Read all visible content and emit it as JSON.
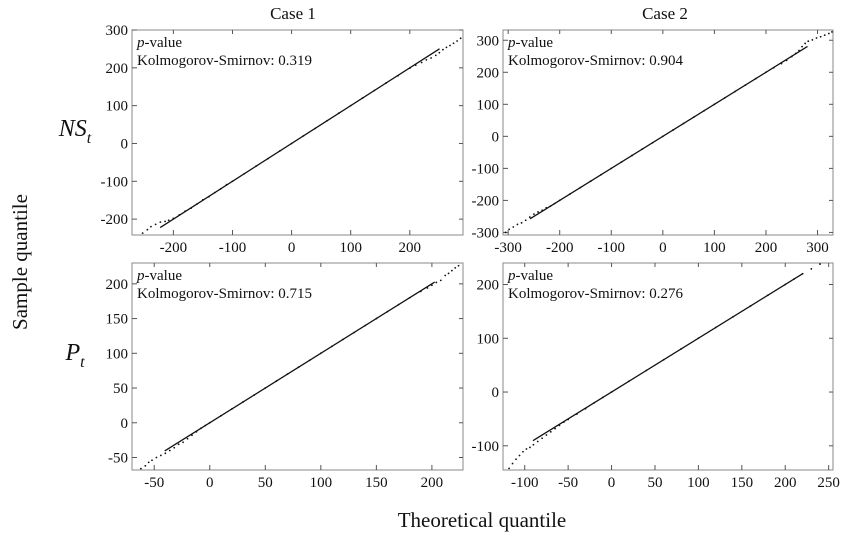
{
  "figure": {
    "column_titles": [
      "Case 1",
      "Case 2"
    ],
    "row_labels": [
      {
        "main": "NS",
        "sub": "t"
      },
      {
        "main": "P",
        "sub": "t"
      }
    ],
    "y_label": "Sample quantile",
    "x_label": "Theoretical quantile"
  },
  "chart_data": [
    {
      "type": "scatter",
      "panel": "NS_t, Case 1",
      "xlim": [
        -270,
        290
      ],
      "ylim": [
        -242,
        300
      ],
      "xticks": [
        -200,
        -100,
        0,
        100,
        200
      ],
      "yticks": [
        -200,
        -100,
        0,
        100,
        200,
        300
      ],
      "grid": false,
      "annotation": {
        "line1_italic": "p",
        "line1_rest": "-value",
        "test": "Kolmogorov-Smirnov:",
        "p_value": "0.319"
      },
      "points": [
        [
          -264,
          -252
        ],
        [
          -252,
          -237
        ],
        [
          -244,
          -228
        ],
        [
          -238,
          -220
        ],
        [
          -230,
          -214
        ],
        [
          -222,
          -208
        ],
        [
          -214,
          -206
        ],
        [
          -208,
          -203
        ],
        [
          -200,
          -198
        ],
        [
          -190,
          -189
        ],
        [
          -180,
          -179
        ],
        [
          -170,
          -171
        ],
        [
          -160,
          -160
        ],
        [
          -150,
          -149
        ],
        [
          -140,
          -141
        ],
        [
          -130,
          -130
        ],
        [
          -120,
          -120
        ],
        [
          -110,
          -109
        ],
        [
          -100,
          -100
        ],
        [
          -80,
          -80
        ],
        [
          -60,
          -60
        ],
        [
          -40,
          -40
        ],
        [
          -20,
          -20
        ],
        [
          0,
          0
        ],
        [
          20,
          20
        ],
        [
          40,
          40
        ],
        [
          60,
          60
        ],
        [
          80,
          80
        ],
        [
          100,
          100
        ],
        [
          120,
          120
        ],
        [
          140,
          140
        ],
        [
          160,
          160
        ],
        [
          180,
          179
        ],
        [
          200,
          199
        ],
        [
          210,
          207
        ],
        [
          220,
          214
        ],
        [
          228,
          221
        ],
        [
          236,
          226
        ],
        [
          244,
          233
        ],
        [
          250,
          240
        ],
        [
          256,
          248
        ],
        [
          262,
          254
        ],
        [
          268,
          259
        ],
        [
          274,
          265
        ],
        [
          280,
          271
        ],
        [
          286,
          278
        ],
        [
          292,
          287
        ]
      ]
    },
    {
      "type": "scatter",
      "panel": "NS_t, Case 2",
      "xlim": [
        -310,
        330
      ],
      "ylim": [
        -308,
        332
      ],
      "xticks": [
        -300,
        -200,
        -100,
        0,
        100,
        200,
        300
      ],
      "yticks": [
        -300,
        -200,
        -100,
        0,
        100,
        200,
        300
      ],
      "grid": false,
      "annotation": {
        "line1_italic": "p",
        "line1_rest": "-value",
        "test": "Kolmogorov-Smirnov:",
        "p_value": "0.904"
      },
      "points": [
        [
          -305,
          -300
        ],
        [
          -298,
          -290
        ],
        [
          -290,
          -283
        ],
        [
          -282,
          -275
        ],
        [
          -274,
          -270
        ],
        [
          -266,
          -262
        ],
        [
          -258,
          -252
        ],
        [
          -250,
          -243
        ],
        [
          -242,
          -236
        ],
        [
          -234,
          -231
        ],
        [
          -226,
          -223
        ],
        [
          -218,
          -218
        ],
        [
          -210,
          -210
        ],
        [
          -200,
          -200
        ],
        [
          -180,
          -180
        ],
        [
          -160,
          -160
        ],
        [
          -140,
          -140
        ],
        [
          -120,
          -120
        ],
        [
          -100,
          -100
        ],
        [
          -80,
          -80
        ],
        [
          -60,
          -60
        ],
        [
          -40,
          -40
        ],
        [
          -20,
          -20
        ],
        [
          0,
          0
        ],
        [
          20,
          20
        ],
        [
          40,
          40
        ],
        [
          60,
          60
        ],
        [
          80,
          80
        ],
        [
          100,
          100
        ],
        [
          120,
          120
        ],
        [
          140,
          140
        ],
        [
          160,
          160
        ],
        [
          180,
          180
        ],
        [
          200,
          200
        ],
        [
          215,
          214
        ],
        [
          230,
          227
        ],
        [
          240,
          237
        ],
        [
          250,
          249
        ],
        [
          258,
          259
        ],
        [
          264,
          268
        ],
        [
          270,
          280
        ],
        [
          276,
          290
        ],
        [
          282,
          297
        ],
        [
          290,
          301
        ],
        [
          298,
          307
        ],
        [
          306,
          311
        ],
        [
          314,
          316
        ],
        [
          322,
          321
        ],
        [
          328,
          326
        ]
      ]
    },
    {
      "type": "scatter",
      "panel": "P_t, Case 1",
      "xlim": [
        -70,
        228
      ],
      "ylim": [
        -68,
        230
      ],
      "xticks": [
        -50,
        0,
        50,
        100,
        150,
        200
      ],
      "yticks": [
        -50,
        0,
        50,
        100,
        150,
        200
      ],
      "grid": false,
      "annotation": {
        "line1_italic": "p",
        "line1_rest": "-value",
        "test": "Kolmogorov-Smirnov:",
        "p_value": "0.715"
      },
      "points": [
        [
          -62,
          -66
        ],
        [
          -58,
          -62
        ],
        [
          -55,
          -57
        ],
        [
          -52,
          -54
        ],
        [
          -48,
          -50
        ],
        [
          -44,
          -47
        ],
        [
          -40,
          -44
        ],
        [
          -36,
          -40
        ],
        [
          -32,
          -36
        ],
        [
          -28,
          -31
        ],
        [
          -24,
          -28
        ],
        [
          -20,
          -23
        ],
        [
          -16,
          -18
        ],
        [
          -12,
          -13
        ],
        [
          -8,
          -8
        ],
        [
          -4,
          -4
        ],
        [
          0,
          0
        ],
        [
          10,
          10
        ],
        [
          20,
          20
        ],
        [
          30,
          30
        ],
        [
          40,
          40
        ],
        [
          50,
          50
        ],
        [
          60,
          60
        ],
        [
          70,
          70
        ],
        [
          80,
          80
        ],
        [
          90,
          90
        ],
        [
          100,
          100
        ],
        [
          110,
          110
        ],
        [
          120,
          120
        ],
        [
          130,
          130
        ],
        [
          140,
          140
        ],
        [
          150,
          150
        ],
        [
          160,
          160
        ],
        [
          170,
          170
        ],
        [
          180,
          180
        ],
        [
          190,
          189
        ],
        [
          196,
          194
        ],
        [
          200,
          198
        ],
        [
          204,
          202
        ],
        [
          208,
          205
        ],
        [
          212,
          212
        ],
        [
          215,
          215
        ],
        [
          218,
          219
        ],
        [
          221,
          223
        ],
        [
          224,
          226
        ]
      ]
    },
    {
      "type": "scatter",
      "panel": "P_t, Case 2",
      "xlim": [
        -125,
        255
      ],
      "ylim": [
        -145,
        240
      ],
      "xticks": [
        -100,
        -50,
        0,
        50,
        100,
        150,
        200,
        250
      ],
      "yticks": [
        -100,
        0,
        100,
        200
      ],
      "grid": false,
      "annotation": {
        "line1_italic": "p",
        "line1_rest": "-value",
        "test": "Kolmogorov-Smirnov:",
        "p_value": "0.276"
      },
      "points": [
        [
          -118,
          -142
        ],
        [
          -114,
          -133
        ],
        [
          -110,
          -125
        ],
        [
          -106,
          -118
        ],
        [
          -102,
          -111
        ],
        [
          -98,
          -106
        ],
        [
          -94,
          -103
        ],
        [
          -90,
          -98
        ],
        [
          -85,
          -92
        ],
        [
          -80,
          -86
        ],
        [
          -75,
          -80
        ],
        [
          -70,
          -74
        ],
        [
          -65,
          -68
        ],
        [
          -60,
          -62
        ],
        [
          -55,
          -56
        ],
        [
          -50,
          -51
        ],
        [
          -40,
          -41
        ],
        [
          -30,
          -31
        ],
        [
          -20,
          -20
        ],
        [
          -10,
          -10
        ],
        [
          0,
          0
        ],
        [
          20,
          20
        ],
        [
          40,
          40
        ],
        [
          60,
          60
        ],
        [
          80,
          80
        ],
        [
          100,
          100
        ],
        [
          120,
          120
        ],
        [
          140,
          140
        ],
        [
          160,
          160
        ],
        [
          180,
          180
        ],
        [
          200,
          200
        ],
        [
          210,
          210
        ],
        [
          220,
          220
        ],
        [
          230,
          229
        ],
        [
          240,
          238
        ],
        [
          248,
          244
        ]
      ]
    }
  ]
}
